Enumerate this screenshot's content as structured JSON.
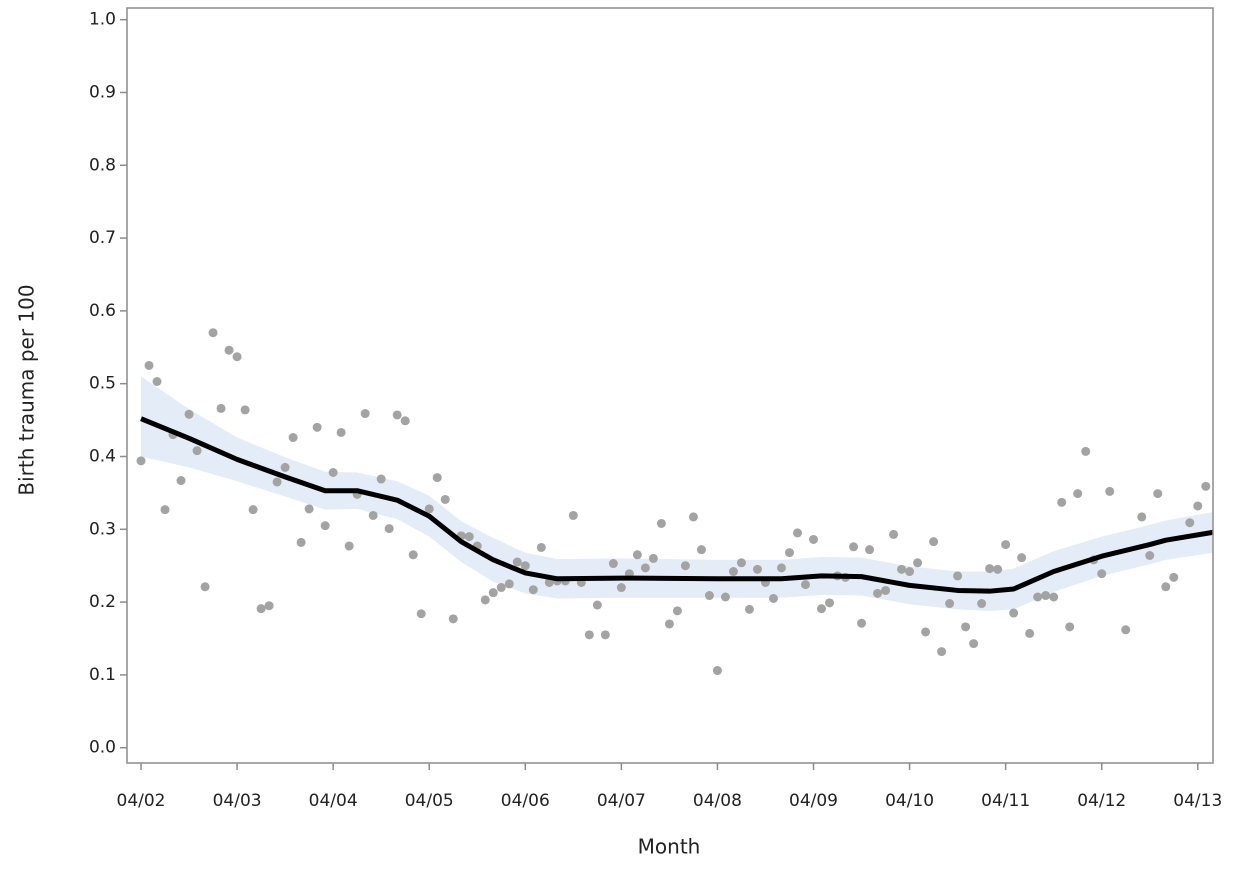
{
  "chart_data": {
    "type": "scatter",
    "x_label": "Month",
    "y_label": "Birth trauma per 100",
    "xlim": [
      -1.75,
      133.9
    ],
    "ylim": [
      -0.021,
      1.016
    ],
    "xticks": [
      {
        "value": 0,
        "label": "04/02"
      },
      {
        "value": 12,
        "label": "04/03"
      },
      {
        "value": 24,
        "label": "04/04"
      },
      {
        "value": 36,
        "label": "04/05"
      },
      {
        "value": 48,
        "label": "04/06"
      },
      {
        "value": 60,
        "label": "04/07"
      },
      {
        "value": 72,
        "label": "04/08"
      },
      {
        "value": 84,
        "label": "04/09"
      },
      {
        "value": 96,
        "label": "04/10"
      },
      {
        "value": 108,
        "label": "04/11"
      },
      {
        "value": 120,
        "label": "04/12"
      },
      {
        "value": 132,
        "label": "04/13"
      }
    ],
    "yticks": [
      {
        "value": 0,
        "label": "0.0"
      },
      0.1,
      0.2,
      0.3,
      0.4,
      0.5,
      0.6,
      0.7,
      0.8,
      0.9,
      {
        "value": 1,
        "label": "1.0"
      }
    ],
    "series": [
      {
        "type": "scatter",
        "color": "#a3a3a3",
        "x": [
          0,
          1,
          2,
          3,
          4,
          5,
          6,
          7,
          8,
          9,
          10,
          11,
          12,
          13,
          14,
          15,
          16,
          17,
          18,
          19,
          20,
          21,
          22,
          23,
          24,
          25,
          26,
          27,
          28,
          29,
          30,
          31,
          32,
          33,
          34,
          35,
          36,
          37,
          38,
          39,
          40,
          41,
          42,
          43,
          44,
          45,
          46,
          47,
          48,
          49,
          50,
          51,
          52,
          53,
          54,
          55,
          56,
          57,
          58,
          59,
          60,
          61,
          62,
          63,
          64,
          65,
          66,
          67,
          68,
          69,
          70,
          71,
          72,
          73,
          74,
          75,
          76,
          77,
          78,
          79,
          80,
          81,
          82,
          83,
          84,
          85,
          86,
          87,
          88,
          89,
          90,
          91,
          92,
          93,
          94,
          95,
          96,
          97,
          98,
          99,
          100,
          101,
          102,
          103,
          104,
          105,
          106,
          107,
          108,
          109,
          110,
          111,
          112,
          113,
          114,
          115,
          116,
          117,
          118,
          119,
          120,
          121,
          123,
          125,
          126,
          127,
          128,
          129,
          131,
          132,
          133
        ],
        "values": [
          0.394,
          0.525,
          0.503,
          0.327,
          0.43,
          0.367,
          0.458,
          0.408,
          0.221,
          0.57,
          0.466,
          0.546,
          0.537,
          0.464,
          0.327,
          0.191,
          0.195,
          0.365,
          0.385,
          0.426,
          0.282,
          0.328,
          0.44,
          0.305,
          0.378,
          0.433,
          0.277,
          0.348,
          0.459,
          0.319,
          0.369,
          0.301,
          0.457,
          0.449,
          0.265,
          0.184,
          0.328,
          0.371,
          0.341,
          0.177,
          0.291,
          0.29,
          0.277,
          0.203,
          0.213,
          0.22,
          0.225,
          0.255,
          0.25,
          0.217,
          0.275,
          0.227,
          0.229,
          0.229,
          0.319,
          0.227,
          0.155,
          0.196,
          0.155,
          0.253,
          0.22,
          0.239,
          0.265,
          0.247,
          0.26,
          0.308,
          0.17,
          0.188,
          0.25,
          0.317,
          0.272,
          0.209,
          0.106,
          0.207,
          0.242,
          0.254,
          0.19,
          0.245,
          0.227,
          0.205,
          0.247,
          0.268,
          0.295,
          0.224,
          0.286,
          0.191,
          0.199,
          0.236,
          0.234,
          0.276,
          0.171,
          0.272,
          0.212,
          0.216,
          0.293,
          0.245,
          0.242,
          0.254,
          0.159,
          0.283,
          0.132,
          0.198,
          0.236,
          0.166,
          0.143,
          0.198,
          0.246,
          0.245,
          0.279,
          0.185,
          0.261,
          0.157,
          0.207,
          0.209,
          0.207,
          0.337,
          0.166,
          0.349,
          0.407,
          0.258,
          0.239,
          0.352,
          0.162,
          0.317,
          0.264,
          0.349,
          0.221,
          0.234,
          0.309,
          0.332,
          0.359
        ]
      },
      {
        "type": "line",
        "color": "#000000",
        "band_color": "#e4ecf7",
        "x": [
          0,
          6,
          12,
          18,
          23,
          27,
          32,
          36,
          40,
          44,
          48,
          52,
          60,
          72,
          80,
          85,
          90,
          96,
          102,
          106,
          109,
          114,
          120,
          126,
          128,
          134
        ],
        "values": [
          0.452,
          0.425,
          0.396,
          0.372,
          0.353,
          0.353,
          0.34,
          0.318,
          0.283,
          0.258,
          0.24,
          0.232,
          0.233,
          0.232,
          0.232,
          0.236,
          0.235,
          0.223,
          0.216,
          0.215,
          0.218,
          0.242,
          0.263,
          0.279,
          0.285,
          0.296
        ],
        "lower": [
          0.4,
          0.385,
          0.366,
          0.345,
          0.327,
          0.328,
          0.314,
          0.29,
          0.255,
          0.228,
          0.212,
          0.205,
          0.206,
          0.206,
          0.206,
          0.21,
          0.209,
          0.197,
          0.19,
          0.188,
          0.19,
          0.214,
          0.236,
          0.252,
          0.258,
          0.268
        ],
        "upper": [
          0.51,
          0.465,
          0.426,
          0.399,
          0.379,
          0.378,
          0.366,
          0.346,
          0.311,
          0.288,
          0.268,
          0.259,
          0.26,
          0.258,
          0.258,
          0.262,
          0.261,
          0.249,
          0.242,
          0.242,
          0.246,
          0.27,
          0.29,
          0.306,
          0.312,
          0.324
        ]
      }
    ]
  }
}
